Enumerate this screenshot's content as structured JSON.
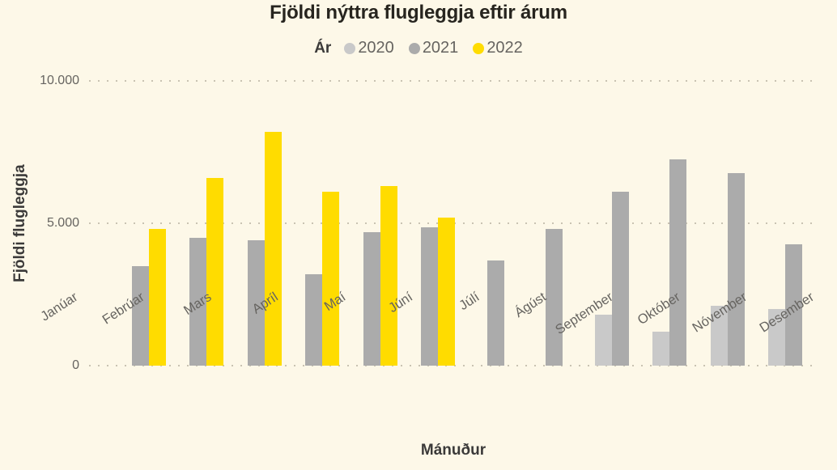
{
  "title": "Fjöldi nýttra flugleggja eftir árum",
  "legend": {
    "label": "Ár",
    "items": [
      {
        "name": "2020",
        "color": "#c9c9c9"
      },
      {
        "name": "2021",
        "color": "#ababab"
      },
      {
        "name": "2022",
        "color": "#ffdc00"
      }
    ]
  },
  "colors": {
    "background": "#fdf8e8",
    "title_text": "#27251f",
    "axis_title_text": "#3b3a39",
    "tick_text": "#666460",
    "gridline": "#c9c3b2"
  },
  "chart_data": {
    "type": "bar",
    "title": "Fjöldi nýttra flugleggja eftir árum",
    "xlabel": "Mánuður",
    "ylabel": "Fjöldi flugleggja",
    "ylim": [
      0,
      10000
    ],
    "grid": "dotted-horizontal",
    "legend_position": "top",
    "yticks": [
      {
        "label": "10.000",
        "value": 10000
      },
      {
        "label": "5.000",
        "value": 5000
      },
      {
        "label": "0",
        "value": 0
      }
    ],
    "categories": [
      "Janúar",
      "Febrúar",
      "Mars",
      "Apríl",
      "Maí",
      "Júní",
      "Júlí",
      "Ágúst",
      "September",
      "Október",
      "Nóvember",
      "Desember"
    ],
    "series": [
      {
        "name": "2020",
        "color": "#c9c9c9",
        "values": [
          null,
          null,
          null,
          null,
          null,
          null,
          null,
          null,
          1800,
          1200,
          2100,
          2000
        ]
      },
      {
        "name": "2021",
        "color": "#ababab",
        "values": [
          3500,
          4500,
          4400,
          3200,
          4700,
          4850,
          3700,
          4800,
          6100,
          7250,
          6750,
          4250
        ]
      },
      {
        "name": "2022",
        "color": "#ffdc00",
        "values": [
          4800,
          6600,
          8200,
          6100,
          6300,
          5200,
          null,
          null,
          null,
          null,
          null,
          null
        ]
      }
    ]
  }
}
